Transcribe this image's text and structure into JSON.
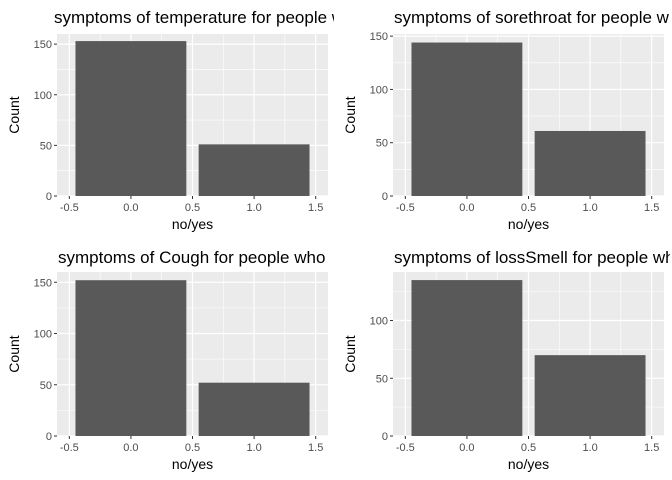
{
  "chart_data": [
    {
      "type": "bar",
      "title": "symptoms of temperature for people who",
      "xlabel": "no/yes",
      "ylabel": "Count",
      "x": [
        0,
        1
      ],
      "values": [
        153,
        51
      ],
      "xlim": [
        -0.5,
        1.5
      ],
      "ylim": [
        0,
        160
      ],
      "xticks": [
        "-0.5",
        "0.0",
        "0.5",
        "1.0",
        "1.5"
      ],
      "yticks": [
        0,
        50,
        100,
        150
      ],
      "bar_color": "#595959",
      "panel_bg": "#ebebeb",
      "grid": true
    },
    {
      "type": "bar",
      "title": "symptoms of sorethroat for people who",
      "xlabel": "no/yes",
      "ylabel": "Count",
      "x": [
        0,
        1
      ],
      "values": [
        144,
        61
      ],
      "xlim": [
        -0.5,
        1.5
      ],
      "ylim": [
        0,
        152
      ],
      "xticks": [
        "-0.5",
        "0.0",
        "0.5",
        "1.0",
        "1.5"
      ],
      "yticks": [
        0,
        50,
        100,
        150
      ],
      "bar_color": "#595959",
      "panel_bg": "#ebebeb",
      "grid": true
    },
    {
      "type": "bar",
      "title": "symptoms of Cough for people who",
      "xlabel": "no/yes",
      "ylabel": "Count",
      "x": [
        0,
        1
      ],
      "values": [
        152,
        52
      ],
      "xlim": [
        -0.5,
        1.5
      ],
      "ylim": [
        0,
        160
      ],
      "xticks": [
        "-0.5",
        "0.0",
        "0.5",
        "1.0",
        "1.5"
      ],
      "yticks": [
        0,
        50,
        100,
        150
      ],
      "bar_color": "#595959",
      "panel_bg": "#ebebeb",
      "grid": true
    },
    {
      "type": "bar",
      "title": "symptoms of lossSmell for people who",
      "xlabel": "no/yes",
      "ylabel": "Count",
      "x": [
        0,
        1
      ],
      "values": [
        135,
        70
      ],
      "xlim": [
        -0.5,
        1.5
      ],
      "ylim": [
        0,
        142
      ],
      "xticks": [
        "-0.5",
        "0.0",
        "0.5",
        "1.0",
        "1.5"
      ],
      "yticks": [
        0,
        50,
        100
      ],
      "bar_color": "#595959",
      "panel_bg": "#ebebeb",
      "grid": true
    }
  ]
}
